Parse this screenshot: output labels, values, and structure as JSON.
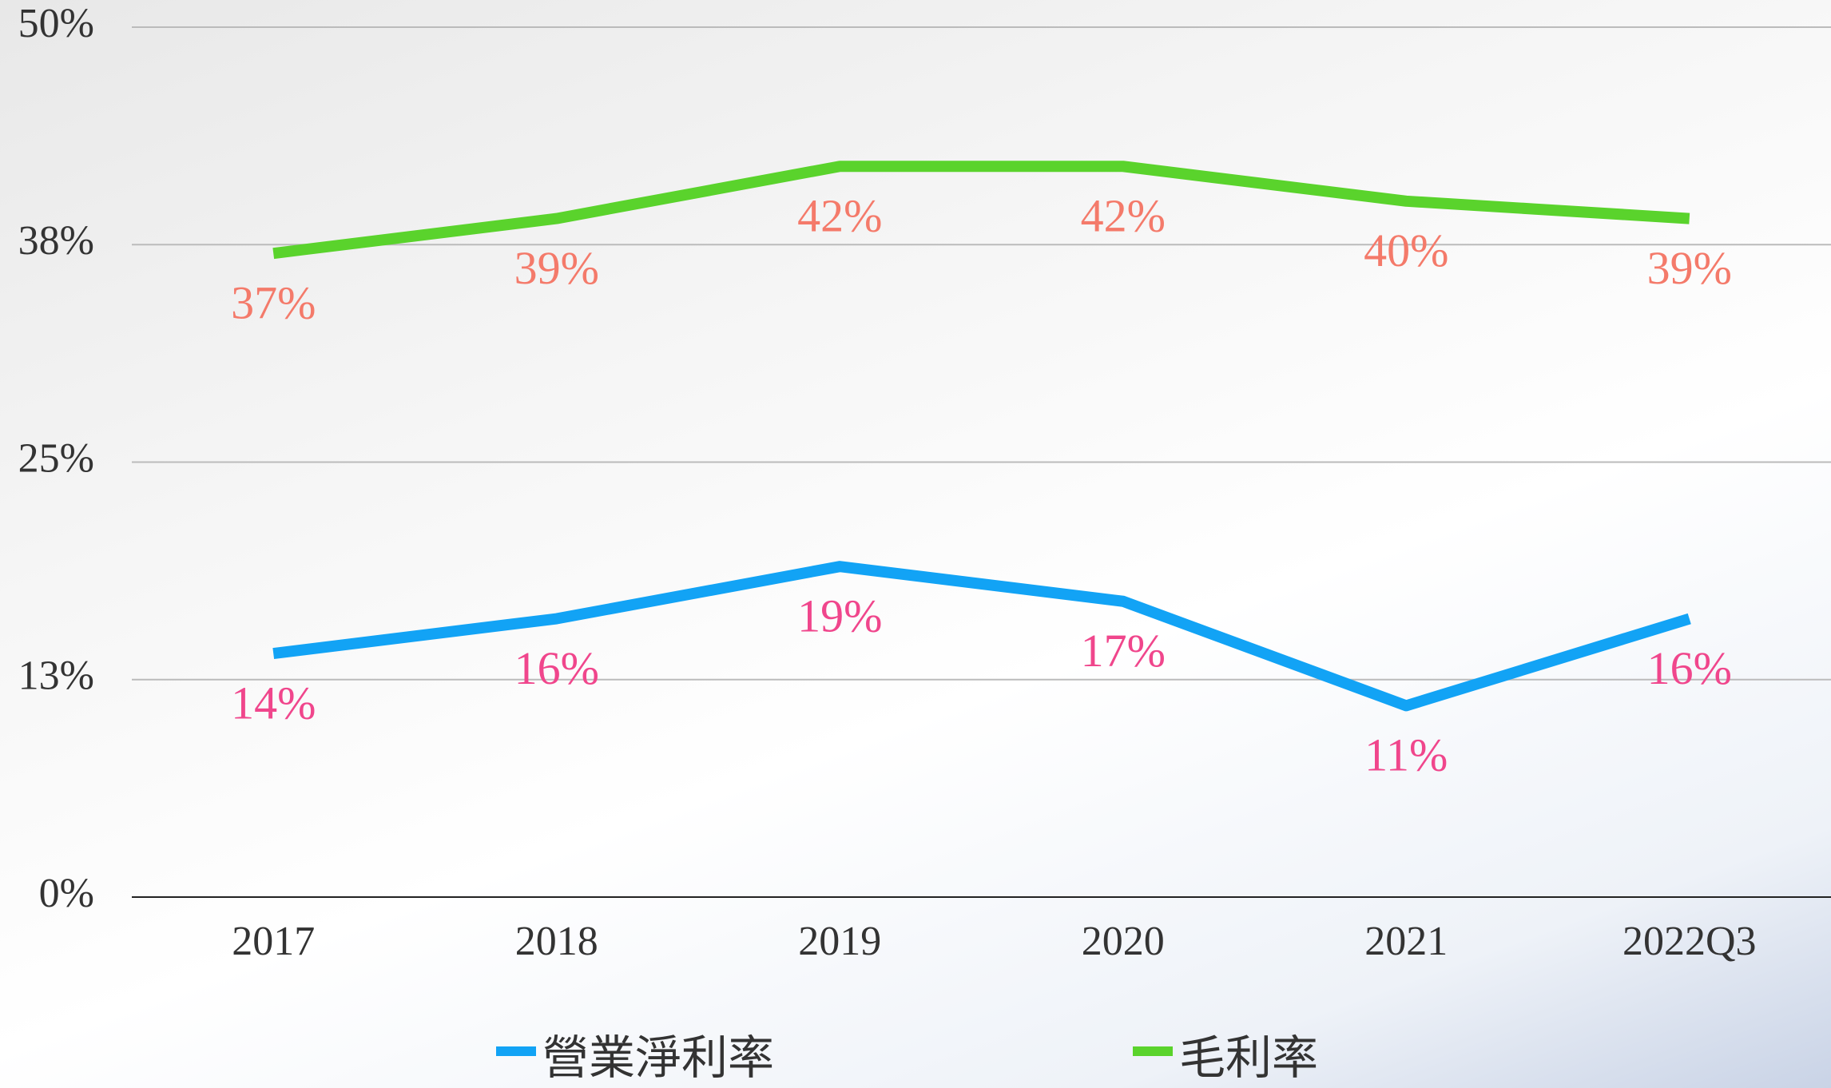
{
  "chart_data": {
    "type": "line",
    "categories": [
      "2017",
      "2018",
      "2019",
      "2020",
      "2021",
      "2022Q3"
    ],
    "series": [
      {
        "name": "營業淨利率",
        "color": "#12a3f5",
        "label_color": "#f0468c",
        "values": [
          14,
          16,
          19,
          17,
          11,
          16
        ],
        "value_labels": [
          "14%",
          "16%",
          "19%",
          "17%",
          "11%",
          "16%"
        ]
      },
      {
        "name": "毛利率",
        "color": "#5ad32c",
        "label_color": "#f47a6a",
        "values": [
          37,
          39,
          42,
          42,
          40,
          39
        ],
        "value_labels": [
          "37%",
          "39%",
          "42%",
          "42%",
          "40%",
          "39%"
        ]
      }
    ],
    "ylim": [
      0,
      50
    ],
    "yticks": [
      {
        "value": 0,
        "label": "0%"
      },
      {
        "value": 12.5,
        "label": "13%"
      },
      {
        "value": 25,
        "label": "25%"
      },
      {
        "value": 37.5,
        "label": "38%"
      },
      {
        "value": 50,
        "label": "50%"
      }
    ],
    "grid": true,
    "legend": "bottom"
  }
}
